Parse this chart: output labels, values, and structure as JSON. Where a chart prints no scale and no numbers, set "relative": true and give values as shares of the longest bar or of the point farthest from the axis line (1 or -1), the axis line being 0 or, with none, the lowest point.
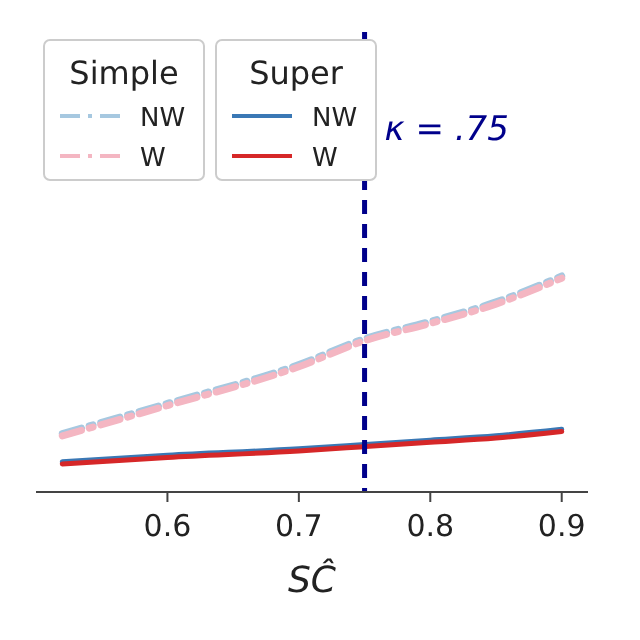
{
  "chart_data": {
    "type": "line",
    "relative": true,
    "xlabel": "SĈ",
    "xlim": [
      0.5,
      0.92
    ],
    "xticks": [
      0.6,
      0.7,
      0.8,
      0.9
    ],
    "legend": "top left",
    "legend_title": [
      "Simple",
      "Super"
    ],
    "x": [
      0.52,
      0.6,
      0.7,
      0.75,
      0.8,
      0.85,
      0.9
    ],
    "series": [
      {
        "name": "NW",
        "color": "#a6c8e0",
        "line_style": "dashed",
        "values": [
          0.27,
          0.41,
          0.59,
          0.71,
          0.79,
          0.88,
          1.0
        ]
      },
      {
        "name": "W",
        "color": "#f4b6c2",
        "line_style": "dashed",
        "values": [
          0.26,
          0.4,
          0.58,
          0.7,
          0.78,
          0.87,
          0.99
        ]
      },
      {
        "name": "NW",
        "color": "#3a78b5",
        "line_style": "solid",
        "values": [
          0.14,
          0.17,
          0.2,
          0.22,
          0.24,
          0.26,
          0.29
        ]
      },
      {
        "name": "W",
        "color": "#d62728",
        "line_style": "solid",
        "values": [
          0.13,
          0.16,
          0.19,
          0.21,
          0.23,
          0.25,
          0.28
        ]
      }
    ],
    "ref_lines": [
      {
        "axis": "x",
        "value": 0.75,
        "label": "κ = .75",
        "color": "#00008b",
        "line_style": "dashed"
      }
    ]
  }
}
